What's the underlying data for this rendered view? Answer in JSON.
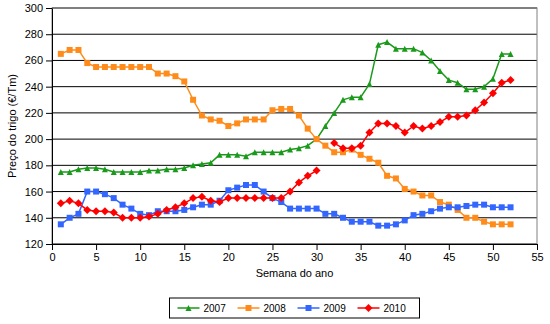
{
  "chart_data": {
    "type": "line",
    "x_label": "Semana do ano",
    "y_label": "Preço do trigo (€/Tm)",
    "x": [
      1,
      2,
      3,
      4,
      5,
      6,
      7,
      8,
      9,
      10,
      11,
      12,
      13,
      14,
      15,
      16,
      17,
      18,
      19,
      20,
      21,
      22,
      23,
      24,
      25,
      26,
      27,
      28,
      29,
      30,
      31,
      32,
      33,
      34,
      35,
      36,
      37,
      38,
      39,
      40,
      41,
      42,
      43,
      44,
      45,
      46,
      47,
      48,
      49,
      50,
      51,
      52
    ],
    "xlim": [
      0,
      55
    ],
    "xticks": [
      0,
      5,
      10,
      15,
      20,
      25,
      30,
      35,
      40,
      45,
      50,
      55
    ],
    "ylim": [
      120,
      300
    ],
    "yticks": [
      120,
      140,
      160,
      180,
      200,
      220,
      240,
      260,
      280,
      300
    ],
    "grid": true,
    "legend": "bottom",
    "series": [
      {
        "name": "2007",
        "color": "#1a9a1a",
        "marker": "triangle",
        "values": [
          175,
          175,
          177,
          178,
          178,
          177,
          175,
          175,
          175,
          175,
          176,
          176,
          177,
          177,
          178,
          180,
          181,
          182,
          188,
          188,
          188,
          187,
          190,
          190,
          190,
          190,
          192,
          193,
          195,
          200,
          210,
          220,
          230,
          232,
          232,
          242,
          272,
          274,
          269,
          269,
          269,
          266,
          260,
          252,
          245,
          243,
          238,
          238,
          240,
          246,
          265,
          265
        ]
      },
      {
        "name": "2008",
        "color": "#ff8c1a",
        "marker": "square",
        "values": [
          265,
          268,
          268,
          258,
          255,
          255,
          255,
          255,
          255,
          255,
          255,
          250,
          250,
          248,
          244,
          230,
          218,
          215,
          214,
          210,
          212,
          215,
          215,
          215,
          222,
          223,
          223,
          218,
          208,
          200,
          195,
          190,
          190,
          192,
          188,
          185,
          182,
          172,
          170,
          162,
          160,
          157,
          157,
          152,
          150,
          146,
          140,
          140,
          137,
          135,
          135,
          135
        ]
      },
      {
        "name": "2009",
        "color": "#3366ff",
        "marker": "square",
        "values": [
          135,
          140,
          143,
          160,
          160,
          158,
          155,
          150,
          147,
          143,
          142,
          145,
          145,
          145,
          146,
          148,
          150,
          150,
          153,
          161,
          163,
          165,
          165,
          160,
          155,
          152,
          147,
          147,
          147,
          147,
          143,
          143,
          140,
          137,
          137,
          137,
          134,
          134,
          135,
          138,
          142,
          143,
          145,
          147,
          148,
          148,
          149,
          150,
          150,
          148,
          148,
          148
        ]
      },
      {
        "name": "2010",
        "color": "#ff0000",
        "marker": "diamond",
        "values": [
          151,
          153,
          151,
          146,
          145,
          145,
          144,
          140,
          140,
          140,
          141,
          143,
          146,
          148,
          151,
          155,
          156,
          153,
          152,
          155,
          155,
          155,
          155,
          155,
          155,
          155,
          160,
          167,
          172,
          176,
          null,
          197,
          193,
          193,
          195,
          205,
          212,
          212,
          210,
          205,
          210,
          208,
          210,
          213,
          217,
          217,
          218,
          222,
          228,
          235,
          243,
          245
        ]
      }
    ]
  }
}
